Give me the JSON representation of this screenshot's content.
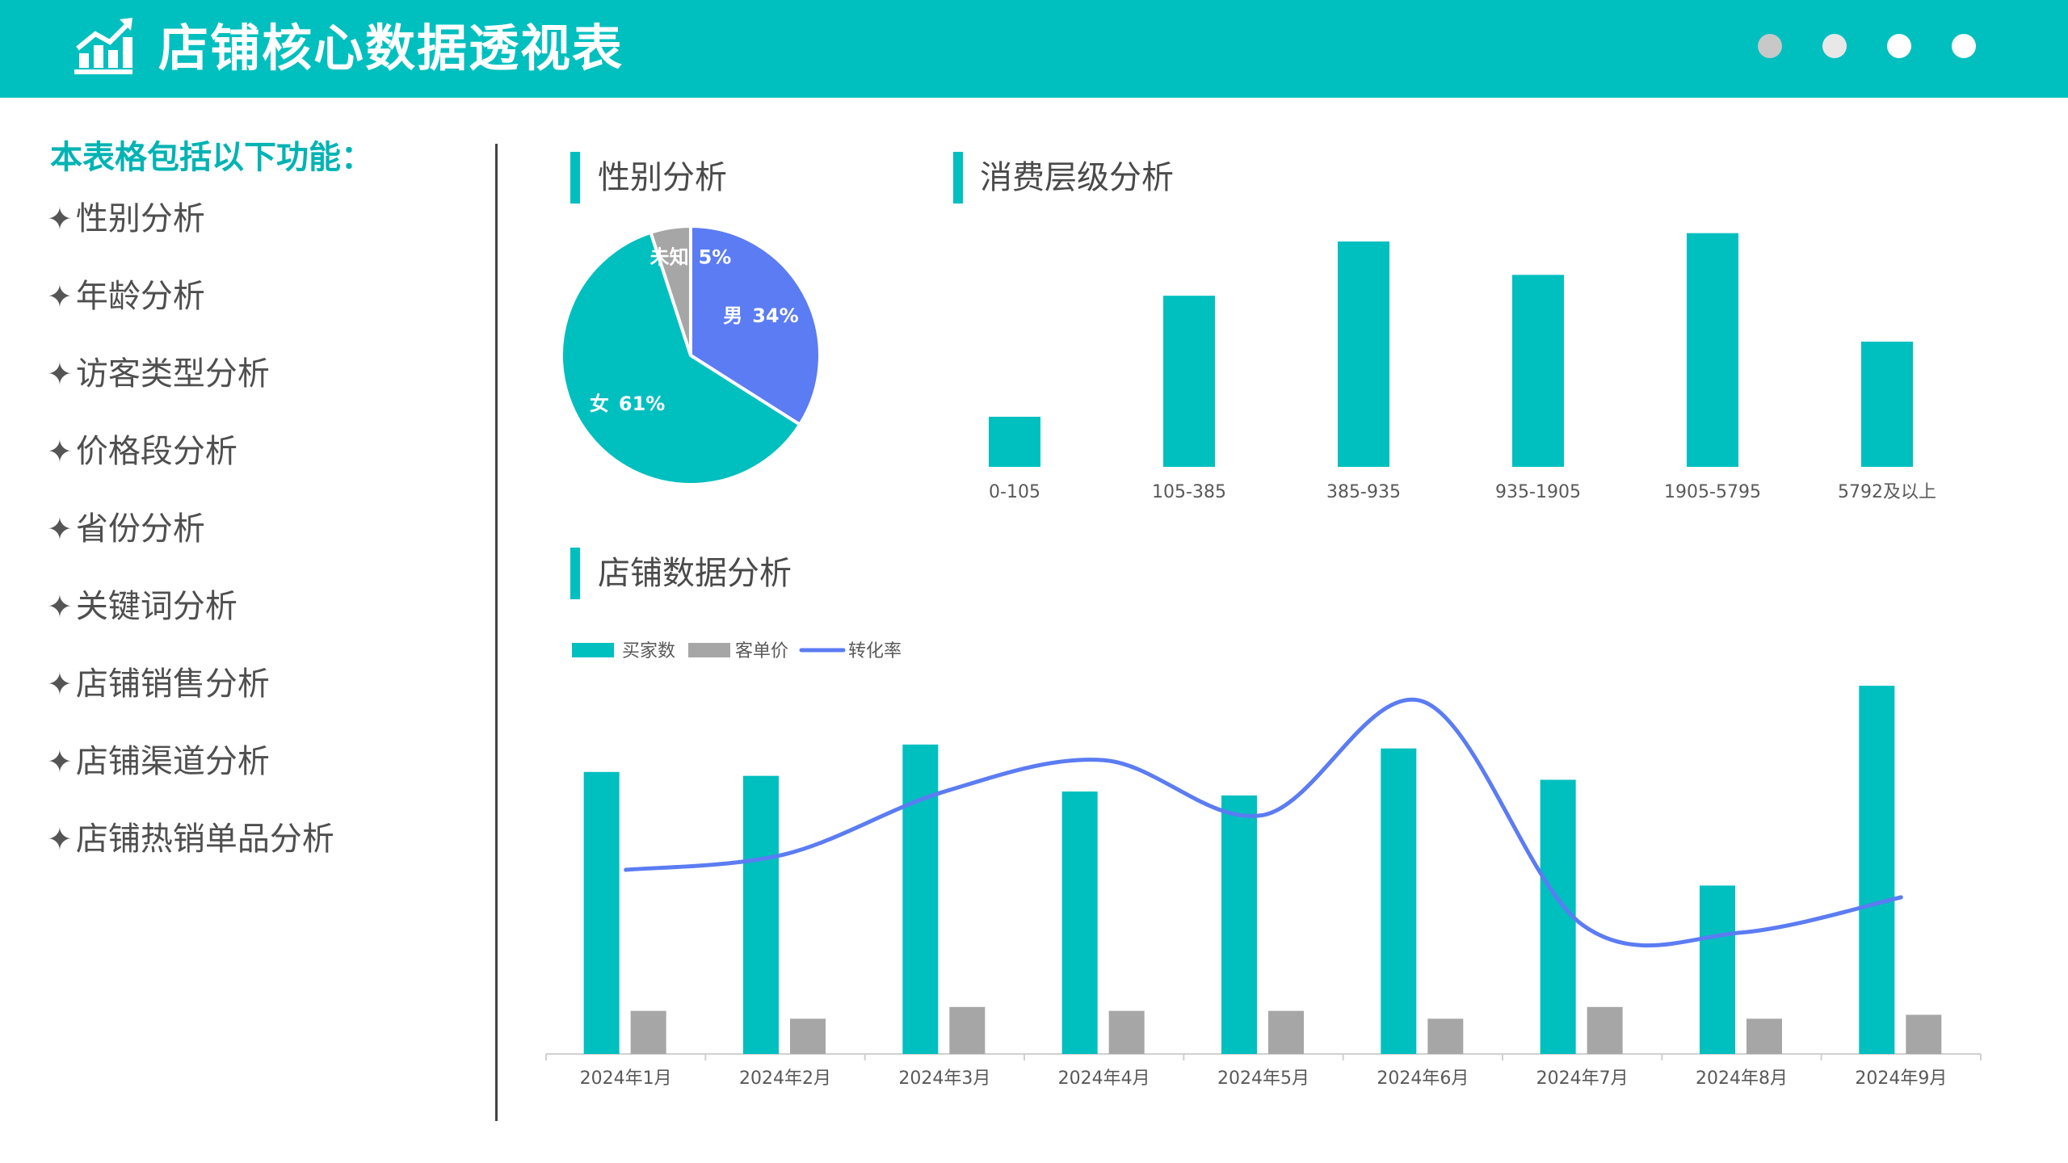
{
  "header": {
    "title": "店铺核心数据透视表",
    "icon": "chart-growth-icon",
    "dot_colors": [
      "#c8c8c8",
      "#e8e8e8",
      "#ffffff",
      "#ffffff"
    ]
  },
  "sidebar": {
    "title": "本表格包括以下功能：",
    "star": "✦",
    "items": [
      "性别分析",
      "年龄分析",
      "访客类型分析",
      "价格段分析",
      "省份分析",
      "关键词分析",
      "店铺销售分析",
      "店铺渠道分析",
      "店铺热销单品分析"
    ]
  },
  "sections": {
    "gender": "性别分析",
    "level": "消费层级分析",
    "store": "店铺数据分析"
  },
  "colors": {
    "accent": "#00bfbf",
    "gray": "#a6a6a6",
    "blue": "#5b7cf2"
  },
  "chart_data": [
    {
      "type": "pie",
      "slices": [
        {
          "label": "男",
          "value": 34,
          "pct": "34%",
          "color": "#5b7cf2"
        },
        {
          "label": "女",
          "value": 61,
          "pct": "61%",
          "color": "#00bfbf"
        },
        {
          "label": "未知",
          "value": 5,
          "pct": "5%",
          "color": "#a6a6a6"
        }
      ]
    },
    {
      "type": "bar",
      "categories": [
        "0-105",
        "105-385",
        "385-935",
        "935-1905",
        "1905-5795",
        "5792及以上"
      ],
      "values": [
        12,
        41,
        54,
        46,
        56,
        30
      ],
      "color": "#00bfbf"
    },
    {
      "type": "bar",
      "categories": [
        "2024年1月",
        "2024年2月",
        "2024年3月",
        "2024年4月",
        "2024年5月",
        "2024年6月",
        "2024年7月",
        "2024年8月",
        "2024年9月"
      ],
      "series": [
        {
          "name": "买家数",
          "type": "bar",
          "values": [
            72,
            71,
            79,
            67,
            66,
            78,
            70,
            43,
            94
          ],
          "color": "#00bfbf"
        },
        {
          "name": "客单价",
          "type": "bar",
          "values": [
            11,
            9,
            12,
            11,
            11,
            9,
            12,
            9,
            10
          ],
          "color": "#a6a6a6"
        },
        {
          "name": "转化率",
          "type": "line",
          "values": [
            47,
            51,
            67,
            75,
            61,
            90,
            33,
            31,
            40
          ],
          "color": "#5b7cf2"
        }
      ],
      "ylim": [
        0,
        100
      ],
      "legend": "top-left"
    }
  ]
}
